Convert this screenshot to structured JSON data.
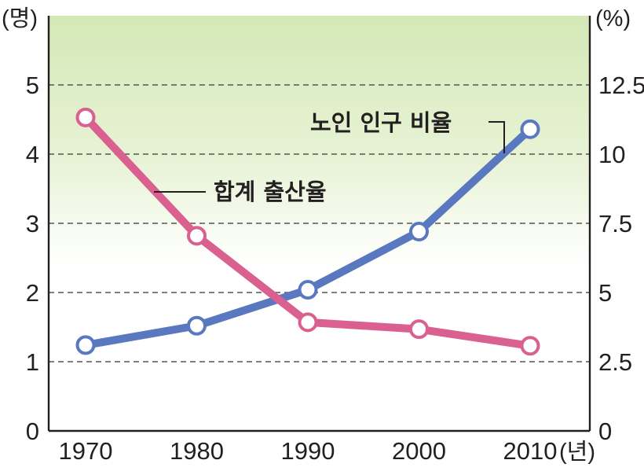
{
  "chart_data": {
    "type": "line",
    "x": [
      1970,
      1980,
      1990,
      2000,
      2010
    ],
    "x_unit": "(년)",
    "y_left_unit": "(명)",
    "y_right_unit": "(%)",
    "y_left_ticks": [
      "0",
      "1",
      "2",
      "3",
      "4",
      "5"
    ],
    "y_right_ticks": [
      "0",
      "2.5",
      "5",
      "7.5",
      "10",
      "12.5"
    ],
    "y_left_lim": [
      0,
      6
    ],
    "y_right_lim": [
      0,
      15
    ],
    "grid": true,
    "series": [
      {
        "name": "합계 출산율",
        "axis": "left",
        "color": "#d9608f",
        "values": [
          4.53,
          2.82,
          1.57,
          1.47,
          1.23
        ]
      },
      {
        "name": "노인 인구 비율",
        "axis": "right",
        "color": "#5a78bf",
        "values": [
          3.1,
          3.8,
          5.1,
          7.2,
          10.9
        ]
      }
    ],
    "background_gradient": [
      "#d4e8b6",
      "#ffffff"
    ]
  }
}
